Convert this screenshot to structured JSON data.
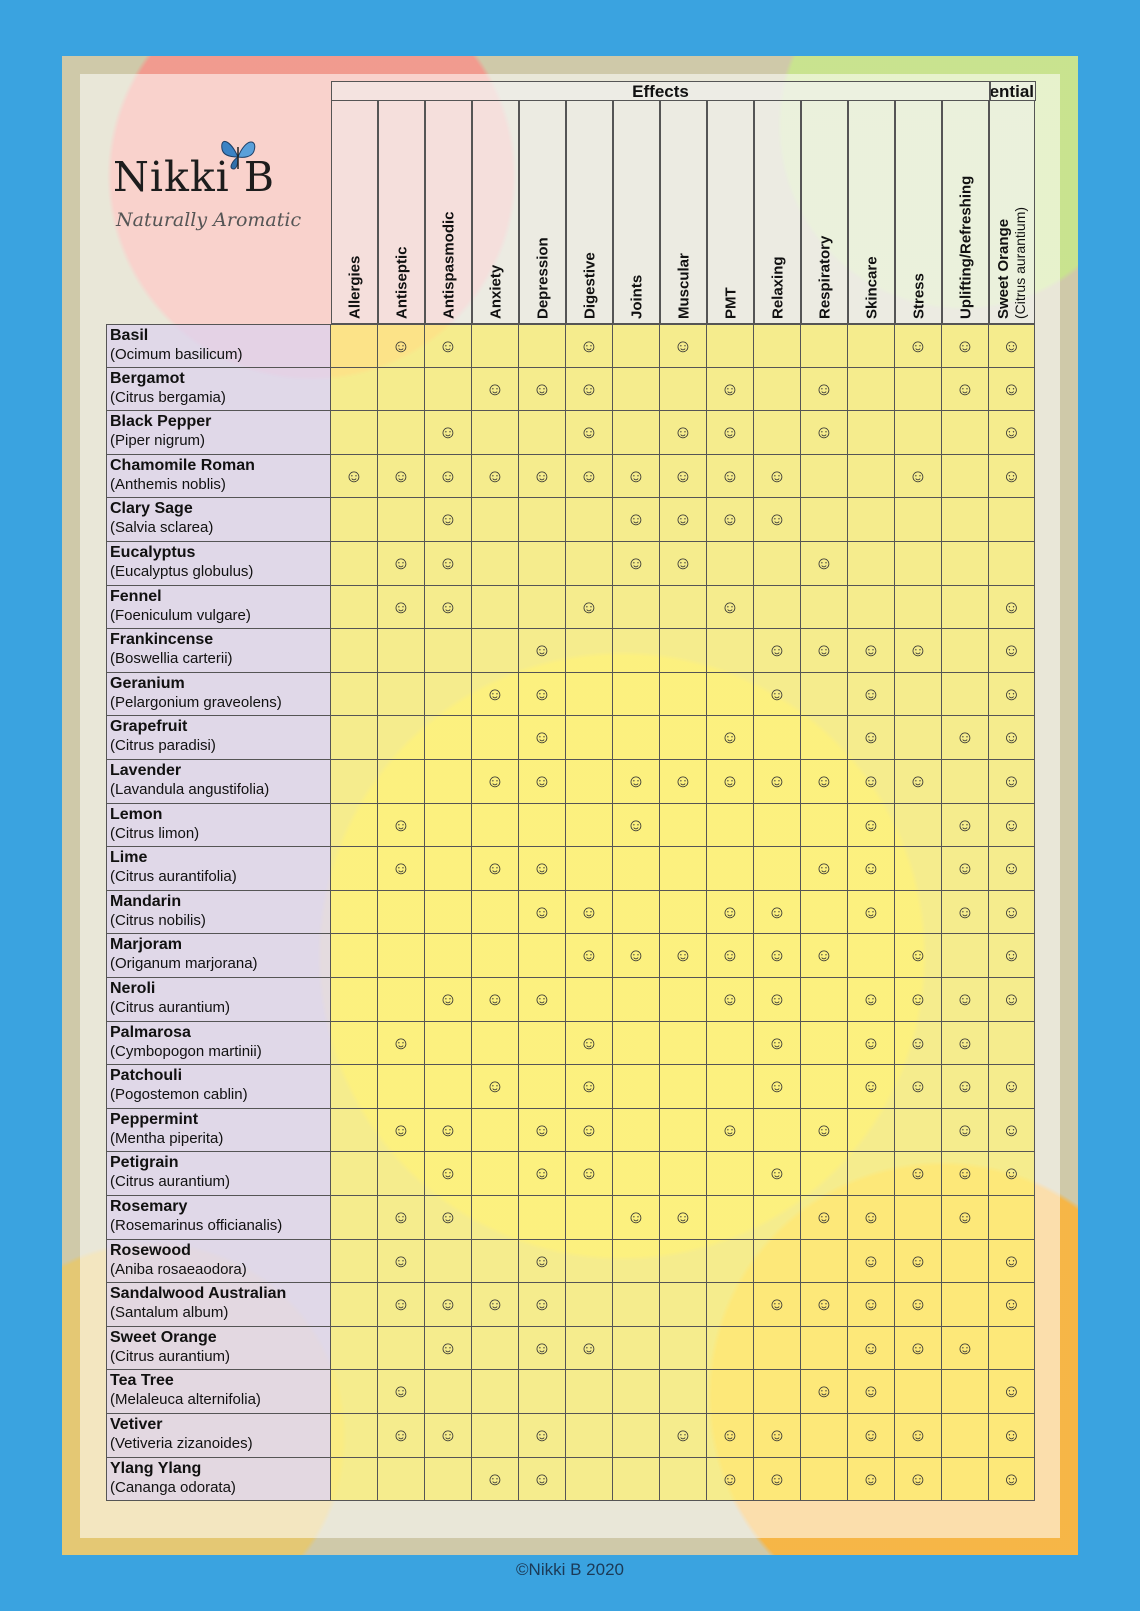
{
  "brand": {
    "name": "Nikki B",
    "tagline": "Naturally Aromatic"
  },
  "header": {
    "group_label": "Effects",
    "group_label_2": "ential"
  },
  "columns": [
    "Allergies",
    "Antiseptic",
    "Antispasmodic",
    "Anxiety",
    "Depression",
    "Digestive",
    "Joints",
    "Muscular",
    "PMT",
    "Relaxing",
    "Respiratory",
    "Skincare",
    "Stress",
    "Uplifting/Refreshing"
  ],
  "blend_column": {
    "line1": "Sweet Orange",
    "line2": "(Citrus aurantium)"
  },
  "icons": {
    "mark": "smiley-icon",
    "glyph": "☺"
  },
  "rows": [
    {
      "common": "Basil",
      "latin": "(Ocimum basilicum)",
      "marks": [
        0,
        1,
        1,
        0,
        0,
        1,
        0,
        1,
        0,
        0,
        0,
        0,
        1,
        1,
        1
      ]
    },
    {
      "common": "Bergamot",
      "latin": "(Citrus bergamia)",
      "marks": [
        0,
        0,
        0,
        1,
        1,
        1,
        0,
        0,
        1,
        0,
        1,
        0,
        0,
        1,
        1
      ]
    },
    {
      "common": "Black Pepper",
      "latin": "(Piper nigrum)",
      "marks": [
        0,
        0,
        1,
        0,
        0,
        1,
        0,
        1,
        1,
        0,
        1,
        0,
        0,
        0,
        1
      ]
    },
    {
      "common": "Chamomile Roman",
      "latin": "(Anthemis noblis)",
      "marks": [
        1,
        1,
        1,
        1,
        1,
        1,
        1,
        1,
        1,
        1,
        0,
        0,
        1,
        0,
        1
      ]
    },
    {
      "common": "Clary Sage",
      "latin": "(Salvia sclarea)",
      "marks": [
        0,
        0,
        1,
        0,
        0,
        0,
        1,
        1,
        1,
        1,
        0,
        0,
        0,
        0,
        0
      ]
    },
    {
      "common": "Eucalyptus",
      "latin": "(Eucalyptus globulus)",
      "marks": [
        0,
        1,
        1,
        0,
        0,
        0,
        1,
        1,
        0,
        0,
        1,
        0,
        0,
        0,
        0
      ]
    },
    {
      "common": "Fennel",
      "latin": "(Foeniculum vulgare)",
      "marks": [
        0,
        1,
        1,
        0,
        0,
        1,
        0,
        0,
        1,
        0,
        0,
        0,
        0,
        0,
        1
      ]
    },
    {
      "common": "Frankincense",
      "latin": "(Boswellia carterii)",
      "marks": [
        0,
        0,
        0,
        0,
        1,
        0,
        0,
        0,
        0,
        1,
        1,
        1,
        1,
        0,
        1
      ]
    },
    {
      "common": "Geranium",
      "latin": "(Pelargonium graveolens)",
      "marks": [
        0,
        0,
        0,
        1,
        1,
        0,
        0,
        0,
        0,
        1,
        0,
        1,
        0,
        0,
        1
      ]
    },
    {
      "common": "Grapefruit",
      "latin": "(Citrus paradisi)",
      "marks": [
        0,
        0,
        0,
        0,
        1,
        0,
        0,
        0,
        1,
        0,
        0,
        1,
        0,
        1,
        1
      ]
    },
    {
      "common": "Lavender",
      "latin": "(Lavandula angustifolia)",
      "marks": [
        0,
        0,
        0,
        1,
        1,
        0,
        1,
        1,
        1,
        1,
        1,
        1,
        1,
        0,
        1
      ]
    },
    {
      "common": "Lemon",
      "latin": "(Citrus limon)",
      "marks": [
        0,
        1,
        0,
        0,
        0,
        0,
        1,
        0,
        0,
        0,
        0,
        1,
        0,
        1,
        1
      ]
    },
    {
      "common": "Lime",
      "latin": "(Citrus aurantifolia)",
      "marks": [
        0,
        1,
        0,
        1,
        1,
        0,
        0,
        0,
        0,
        0,
        1,
        1,
        0,
        1,
        1
      ]
    },
    {
      "common": "Mandarin",
      "latin": "(Citrus nobilis)",
      "marks": [
        0,
        0,
        0,
        0,
        1,
        1,
        0,
        0,
        1,
        1,
        0,
        1,
        0,
        1,
        1
      ]
    },
    {
      "common": "Marjoram",
      "latin": "(Origanum marjorana)",
      "marks": [
        0,
        0,
        0,
        0,
        0,
        1,
        1,
        1,
        1,
        1,
        1,
        0,
        1,
        0,
        1
      ]
    },
    {
      "common": "Neroli",
      "latin": "(Citrus aurantium)",
      "marks": [
        0,
        0,
        1,
        1,
        1,
        0,
        0,
        0,
        1,
        1,
        0,
        1,
        1,
        1,
        1
      ]
    },
    {
      "common": "Palmarosa",
      "latin": "(Cymbopogon martinii)",
      "marks": [
        0,
        1,
        0,
        0,
        0,
        1,
        0,
        0,
        0,
        1,
        0,
        1,
        1,
        1,
        0
      ]
    },
    {
      "common": "Patchouli",
      "latin": "(Pogostemon cablin)",
      "marks": [
        0,
        0,
        0,
        1,
        0,
        1,
        0,
        0,
        0,
        1,
        0,
        1,
        1,
        1,
        1
      ]
    },
    {
      "common": "Peppermint",
      "latin": "(Mentha piperita)",
      "marks": [
        0,
        1,
        1,
        0,
        1,
        1,
        0,
        0,
        1,
        0,
        1,
        0,
        0,
        1,
        1
      ]
    },
    {
      "common": "Petigrain",
      "latin": "(Citrus aurantium)",
      "marks": [
        0,
        0,
        1,
        0,
        1,
        1,
        0,
        0,
        0,
        1,
        0,
        0,
        1,
        1,
        1
      ]
    },
    {
      "common": "Rosemary",
      "latin": "(Rosemarinus officianalis)",
      "marks": [
        0,
        1,
        1,
        0,
        0,
        0,
        1,
        1,
        0,
        0,
        1,
        1,
        0,
        1,
        0
      ]
    },
    {
      "common": "Rosewood",
      "latin": "(Aniba rosaeaodora)",
      "marks": [
        0,
        1,
        0,
        0,
        1,
        0,
        0,
        0,
        0,
        0,
        0,
        1,
        1,
        0,
        1
      ]
    },
    {
      "common": "Sandalwood Australian",
      "latin": "(Santalum album)",
      "marks": [
        0,
        1,
        1,
        1,
        1,
        0,
        0,
        0,
        0,
        1,
        1,
        1,
        1,
        0,
        1
      ]
    },
    {
      "common": "Sweet Orange",
      "latin": "(Citrus aurantium)",
      "marks": [
        0,
        0,
        1,
        0,
        1,
        1,
        0,
        0,
        0,
        0,
        0,
        1,
        1,
        1,
        0
      ]
    },
    {
      "common": "Tea Tree",
      "latin": "(Melaleuca alternifolia)",
      "marks": [
        0,
        1,
        0,
        0,
        0,
        0,
        0,
        0,
        0,
        0,
        1,
        1,
        0,
        0,
        1
      ]
    },
    {
      "common": "Vetiver",
      "latin": "(Vetiveria zizanoides)",
      "marks": [
        0,
        1,
        1,
        0,
        1,
        0,
        0,
        1,
        1,
        1,
        0,
        1,
        1,
        0,
        1
      ]
    },
    {
      "common": "Ylang Ylang",
      "latin": "(Cananga odorata)",
      "marks": [
        0,
        0,
        0,
        1,
        1,
        0,
        0,
        0,
        1,
        1,
        0,
        1,
        1,
        0,
        1
      ]
    }
  ],
  "footer": {
    "copyright": "©Nikki B 2020"
  }
}
